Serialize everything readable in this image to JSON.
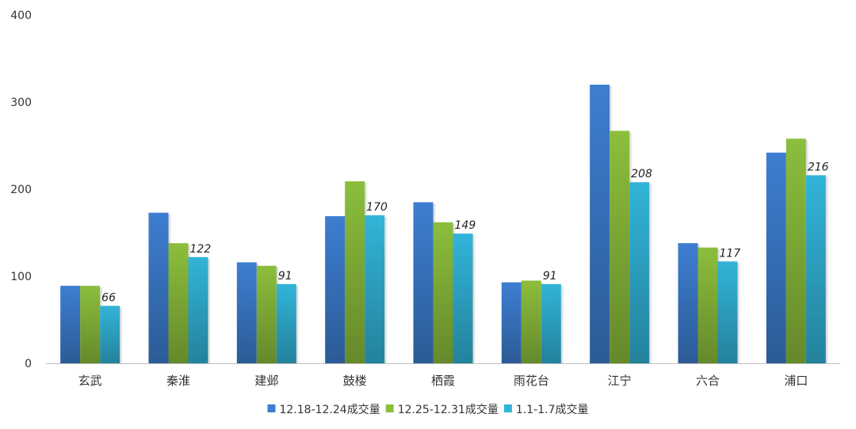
{
  "chart_data": {
    "type": "bar",
    "categories": [
      "玄武",
      "秦淮",
      "建邺",
      "鼓楼",
      "栖霞",
      "雨花台",
      "江宁",
      "六合",
      "浦口"
    ],
    "series": [
      {
        "name": "12.18-12.24成交量",
        "values": [
          89,
          173,
          116,
          169,
          185,
          93,
          320,
          138,
          242
        ],
        "color": "#3d7ed1"
      },
      {
        "name": "12.25-12.31成交量",
        "values": [
          89,
          138,
          112,
          209,
          162,
          95,
          267,
          133,
          258
        ],
        "color": "#8cbe3c"
      },
      {
        "name": "1.1-1.7成交量",
        "values": [
          66,
          122,
          91,
          170,
          149,
          91,
          208,
          117,
          216
        ],
        "color": "#32b4d8"
      }
    ],
    "data_labels_series": 2,
    "yticks": [
      0,
      100,
      200,
      300,
      400
    ],
    "ylim": [
      0,
      400
    ],
    "legend_position": "bottom",
    "grid": false
  }
}
